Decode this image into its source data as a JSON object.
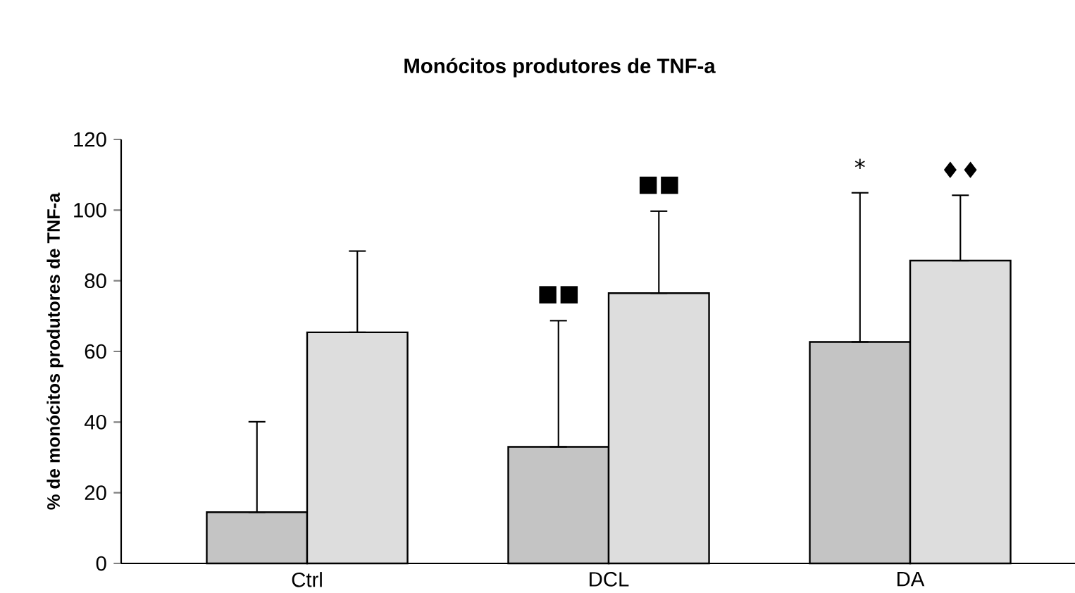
{
  "chart_data": {
    "type": "bar",
    "title": "Monócitos produtores de TNF-a",
    "ylabel": "% de monócitos produtores de TNF-a",
    "categories": [
      "Ctrl",
      "DCL",
      "DA"
    ],
    "series": [
      {
        "color": "#c4c4c4",
        "values": [
          14.5,
          33.0,
          62.7
        ],
        "errors": [
          [
            14.5,
            40.1
          ],
          [
            33.0,
            68.7
          ],
          [
            62.7,
            104.9
          ]
        ]
      },
      {
        "color": "#dddddd",
        "values": [
          65.4,
          76.5,
          85.7
        ],
        "errors": [
          [
            65.4,
            88.4
          ],
          [
            76.5,
            99.7
          ],
          [
            85.7,
            104.2
          ]
        ]
      }
    ],
    "ylim": [
      0,
      120
    ],
    "yticks": [
      0,
      20,
      40,
      60,
      80,
      100,
      120
    ],
    "annotations": [
      "■■",
      "■■",
      "*",
      "♦♦"
    ]
  }
}
